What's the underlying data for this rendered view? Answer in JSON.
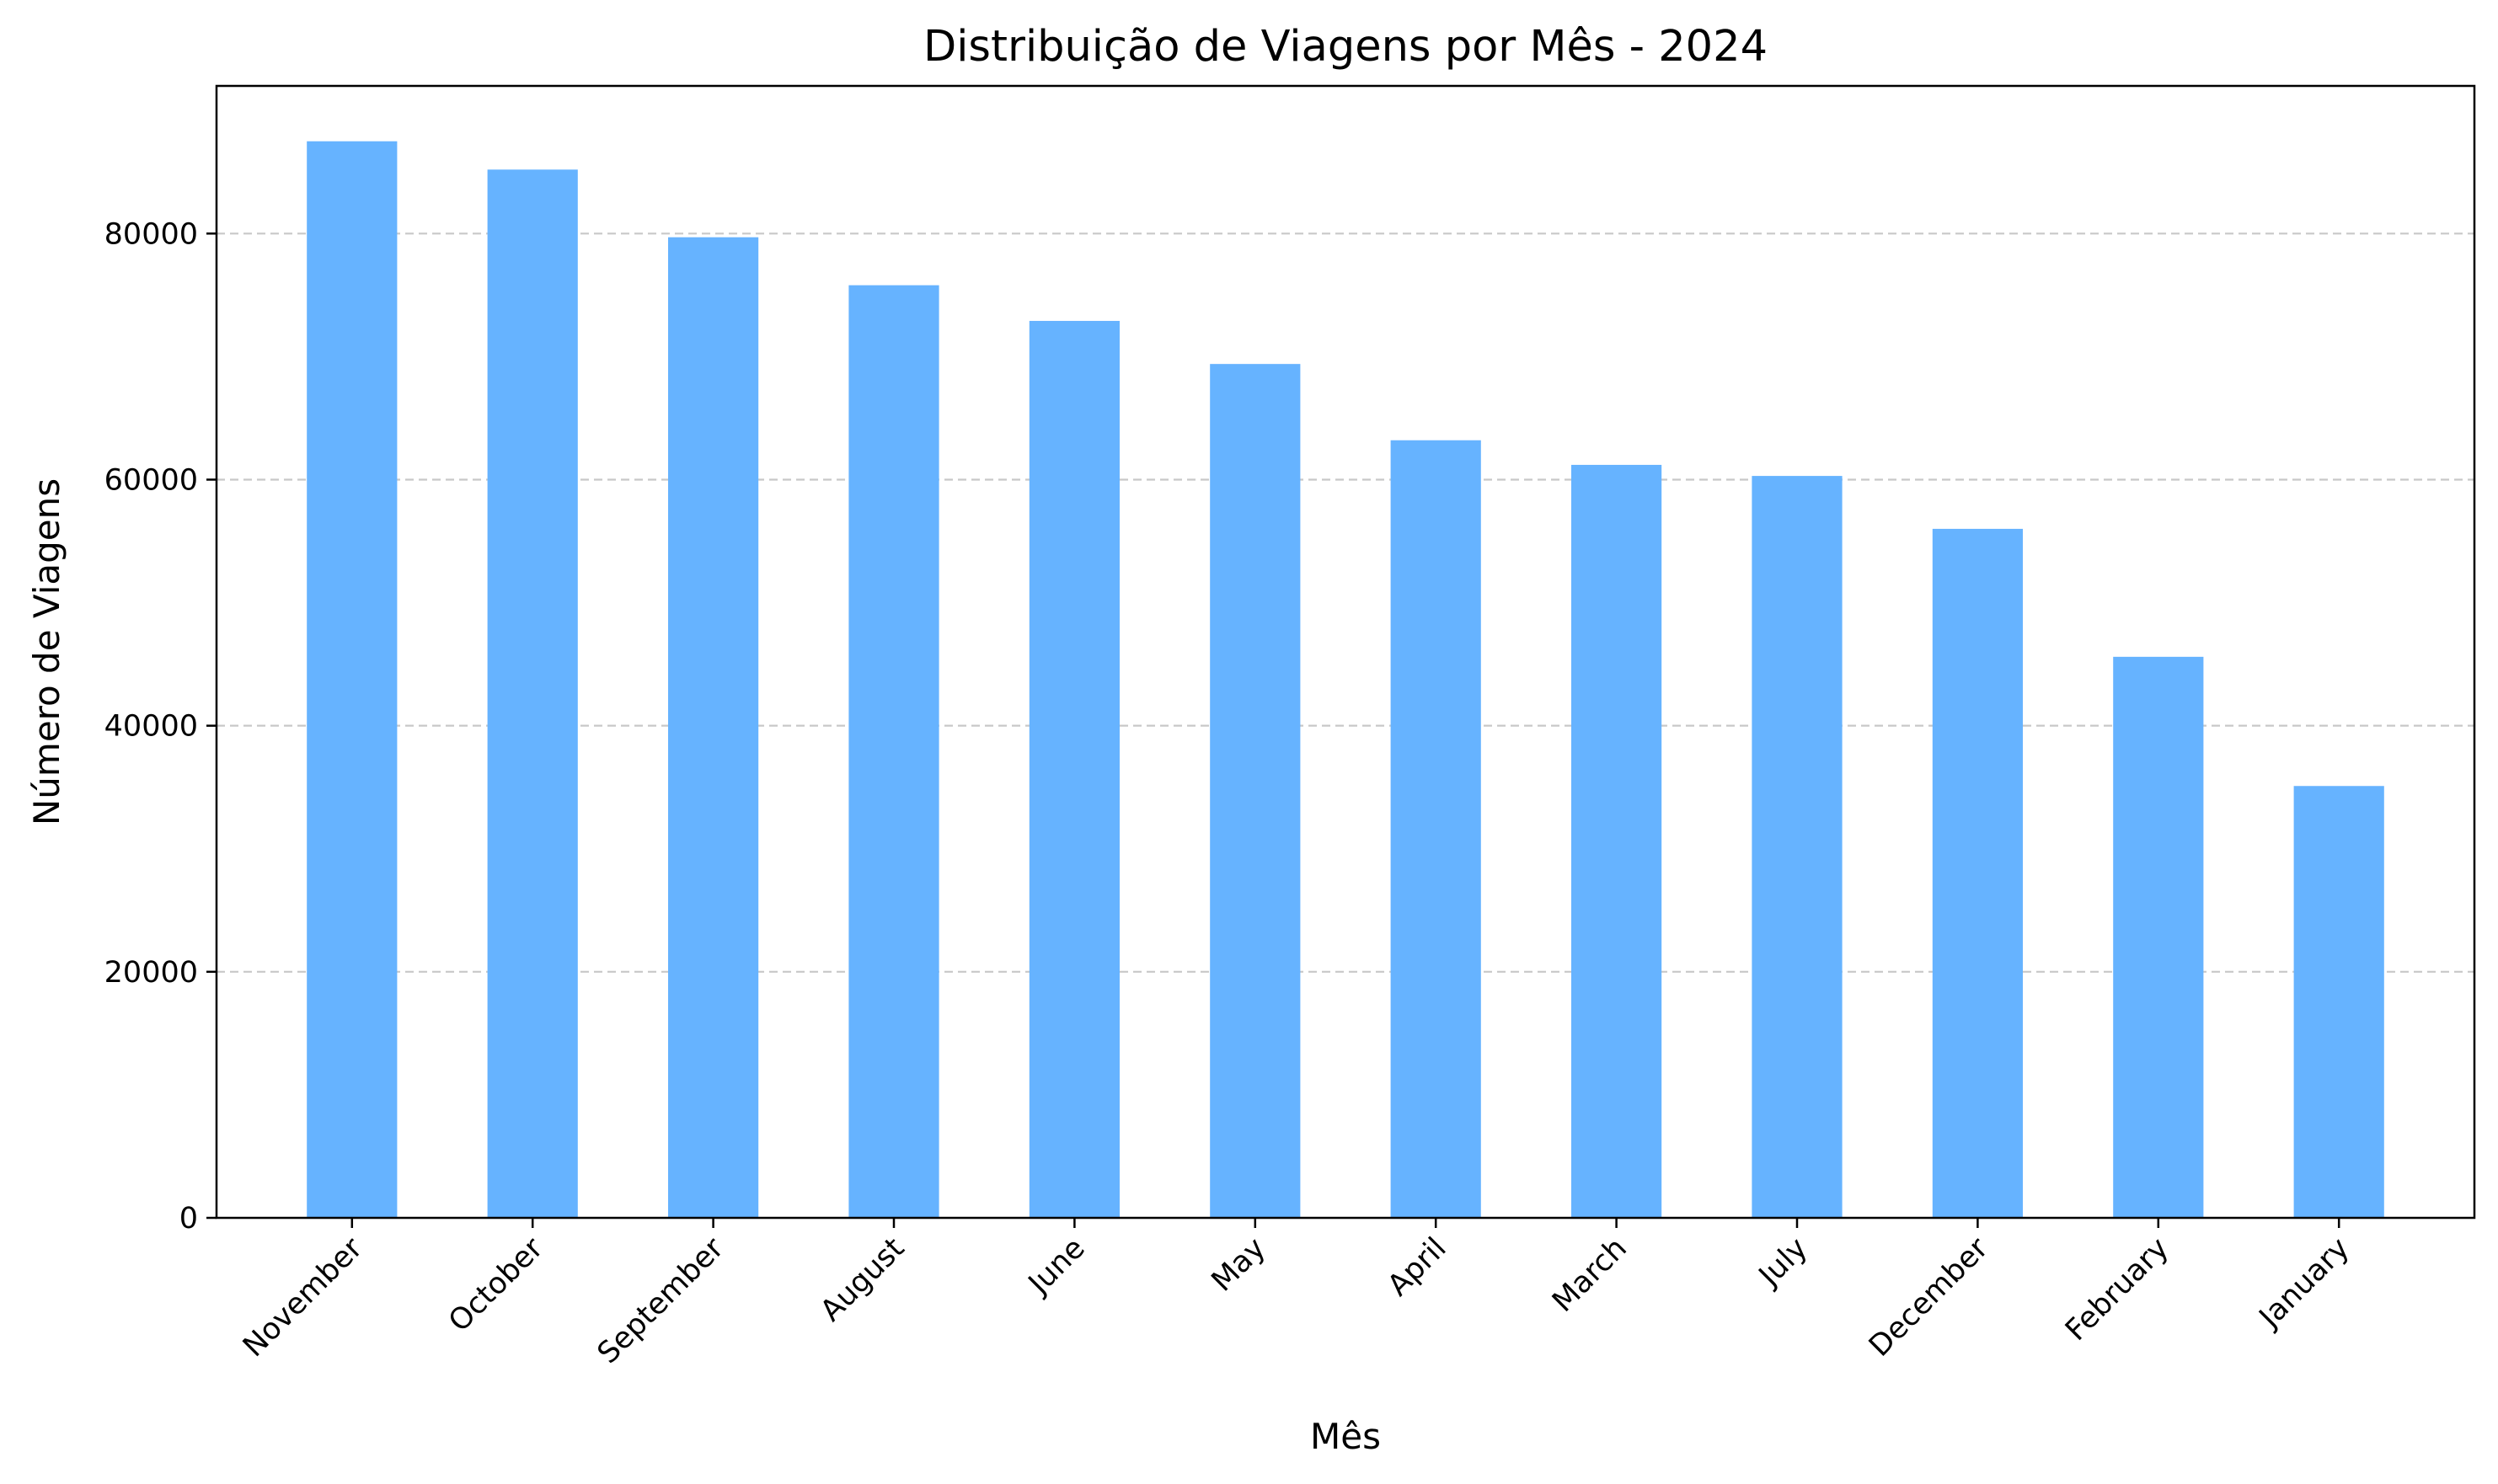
{
  "chart_data": {
    "type": "bar",
    "title": "Distribuição de Viagens por Mês - 2024",
    "xlabel": "Mês",
    "ylabel": "Número de Viagens",
    "categories": [
      "November",
      "October",
      "September",
      "August",
      "June",
      "May",
      "April",
      "March",
      "July",
      "December",
      "February",
      "January"
    ],
    "values": [
      87500,
      85200,
      79700,
      75800,
      72900,
      69400,
      63200,
      61200,
      60300,
      56000,
      45600,
      35100
    ],
    "ylim": [
      0,
      92000
    ],
    "yticks": [
      0,
      20000,
      40000,
      60000,
      80000
    ],
    "ytick_labels": [
      "0",
      "20000",
      "40000",
      "60000",
      "80000"
    ],
    "grid": "y-axis, dashed",
    "bar_color": "#66b3ff",
    "grid_color": "#c8c8c8",
    "xtick_rotation_deg": 45
  }
}
